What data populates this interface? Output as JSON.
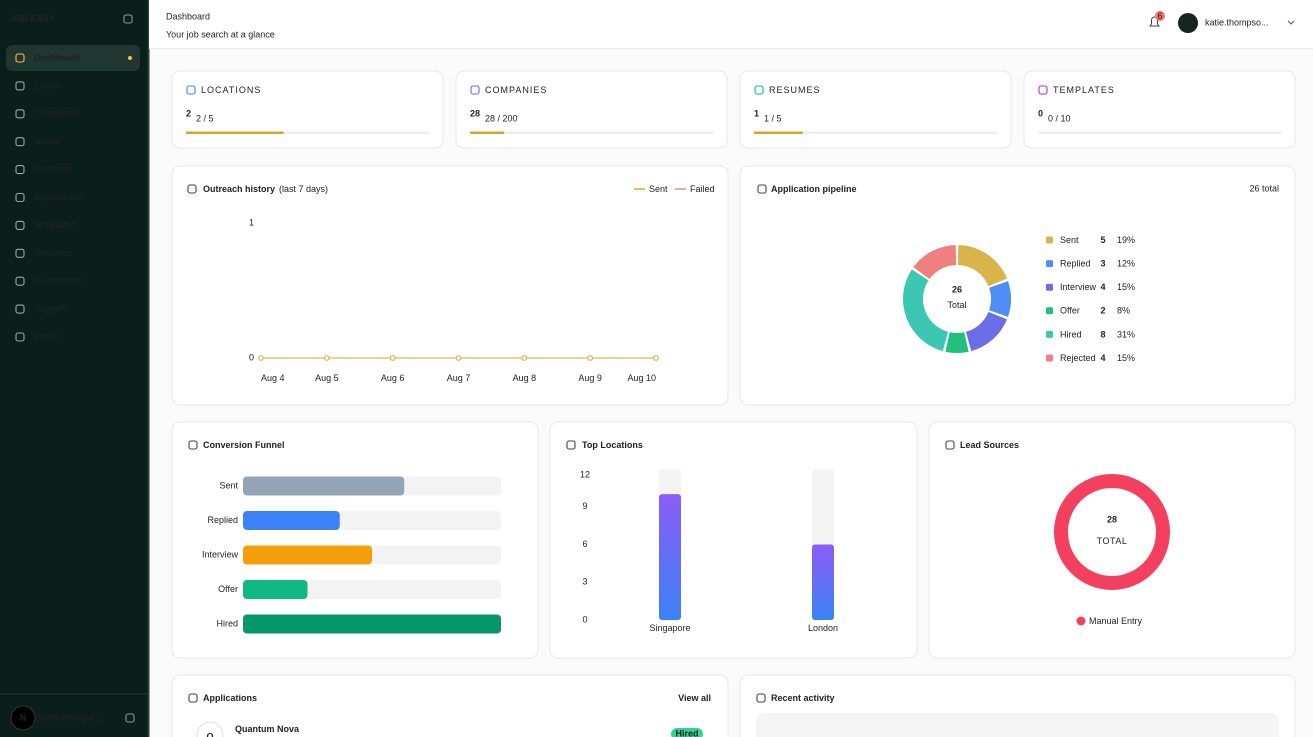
{
  "sidebar": {
    "brand": "JOB-EASY",
    "nav": [
      "Dashboard",
      "Search",
      "Companies",
      "Global",
      "Locations",
      "Applications",
      "Templates",
      "Resumes",
      "Subscription",
      "Support",
      "Profile"
    ],
    "active": 0,
    "user_avatar": "N",
    "user_name": "katie.thomps..."
  },
  "header": {
    "title": "Dashboard",
    "subtitle": "Your job search at a glance",
    "notifications": 6,
    "user_initials": "KA",
    "user_name": "katie.thompso..."
  },
  "stats": [
    {
      "label": "LOCATIONS",
      "value": 2,
      "limit": 5,
      "usage": "2 / 5",
      "color": "#3b82f6"
    },
    {
      "label": "COMPANIES",
      "value": 28,
      "limit": 200,
      "usage": "28 / 200",
      "color": "#6366f1"
    },
    {
      "label": "RESUMES",
      "value": 1,
      "limit": 5,
      "usage": "1 / 5",
      "color": "#10b981"
    },
    {
      "label": "TEMPLATES",
      "value": 0,
      "limit": 10,
      "usage": "0 / 10",
      "color": "#c026d3"
    }
  ],
  "chart_data": [
    {
      "type": "line",
      "title": "Outreach history",
      "subtitle": "(last 7 days)",
      "categories": [
        "Aug 4",
        "Aug 5",
        "Aug 6",
        "Aug 7",
        "Aug 8",
        "Aug 9",
        "Aug 10"
      ],
      "series": [
        {
          "name": "Sent",
          "color": "#e0a526",
          "values": [
            0,
            0,
            0,
            0,
            0,
            0,
            0
          ]
        },
        {
          "name": "Failed",
          "color": "#f08a7a",
          "values": [
            0,
            0,
            0,
            0,
            0,
            0,
            0
          ]
        }
      ],
      "ylim": [
        0,
        1
      ],
      "yticks": [
        0,
        1
      ]
    },
    {
      "type": "donut",
      "title": "Application pipeline",
      "total_label": "26 total",
      "center_value": 26,
      "center_label": "Total",
      "categories": [
        "Sent",
        "Replied",
        "Interview",
        "Offer",
        "Hired",
        "Rejected"
      ],
      "values": [
        5,
        3,
        4,
        2,
        8,
        4
      ],
      "percent_labels": [
        "19%",
        "12%",
        "15%",
        "8%",
        "31%",
        "15%"
      ],
      "colors": [
        "#d9b44a",
        "#4f8ef7",
        "#6c6ee8",
        "#22c07e",
        "#3cc7b2",
        "#f07f7f"
      ]
    },
    {
      "type": "hbar",
      "title": "Conversion Funnel",
      "categories": [
        "Sent",
        "Replied",
        "Interview",
        "Offer",
        "Hired"
      ],
      "values": [
        5,
        3,
        4,
        2,
        8
      ],
      "colors": [
        "#94a3b8",
        "#3b82f6",
        "#f59e0b",
        "#10b981",
        "#059669"
      ],
      "xlim": [
        0,
        8
      ]
    },
    {
      "type": "bar",
      "title": "Top Locations",
      "categories": [
        "Singapore",
        "London"
      ],
      "values": [
        10,
        6
      ],
      "ylim": [
        0,
        12
      ],
      "yticks": [
        0,
        3,
        6,
        9,
        12
      ],
      "colors": [
        "#8b5cf6",
        "#3b82f6"
      ]
    },
    {
      "type": "ring",
      "title": "Lead Sources",
      "center_value": 28,
      "center_label": "TOTAL",
      "categories": [
        "Manual Entry"
      ],
      "values": [
        28
      ],
      "colors": [
        "#f43f5e"
      ]
    }
  ],
  "applications": {
    "title": "Applications",
    "link": "View all",
    "items": [
      {
        "avatar": "Q",
        "company": "Quantum Nova",
        "status": "Hired"
      }
    ]
  },
  "activity": {
    "title": "Recent activity"
  }
}
